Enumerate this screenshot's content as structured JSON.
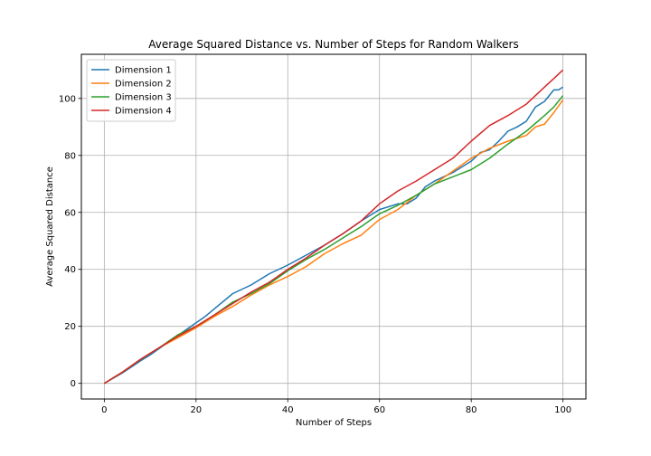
{
  "chart_data": {
    "type": "line",
    "title": "Average Squared Distance vs. Number of Steps for Random Walkers",
    "xlabel": "Number of Steps",
    "ylabel": "Average Squared Distance",
    "xlim": [
      -5,
      105
    ],
    "ylim": [
      -5.5,
      115.5
    ],
    "xticks": [
      0,
      20,
      40,
      60,
      80,
      100
    ],
    "yticks": [
      0,
      20,
      40,
      60,
      80,
      100
    ],
    "grid": true,
    "legend_position": "top-left",
    "series": [
      {
        "name": "Dimension 1",
        "color": "#1f77b4",
        "points": [
          [
            0,
            0
          ],
          [
            4,
            3.7
          ],
          [
            8,
            8
          ],
          [
            10,
            10
          ],
          [
            14,
            14.5
          ],
          [
            18,
            19
          ],
          [
            22,
            23.5
          ],
          [
            25,
            27.5
          ],
          [
            28,
            31.5
          ],
          [
            32,
            34.5
          ],
          [
            36,
            38.5
          ],
          [
            40,
            41.5
          ],
          [
            44,
            45
          ],
          [
            48,
            48.5
          ],
          [
            52,
            52.5
          ],
          [
            56,
            57
          ],
          [
            60,
            61
          ],
          [
            64,
            63
          ],
          [
            66,
            63
          ],
          [
            68,
            65
          ],
          [
            70,
            69
          ],
          [
            72,
            71
          ],
          [
            76,
            74
          ],
          [
            80,
            78
          ],
          [
            82,
            81
          ],
          [
            84,
            82
          ],
          [
            86,
            85
          ],
          [
            88,
            88.5
          ],
          [
            90,
            90
          ],
          [
            92,
            92
          ],
          [
            94,
            97
          ],
          [
            96,
            99
          ],
          [
            98,
            103
          ],
          [
            99,
            103
          ],
          [
            100,
            104
          ]
        ]
      },
      {
        "name": "Dimension 2",
        "color": "#ff7f0e",
        "points": [
          [
            0,
            0
          ],
          [
            4,
            4
          ],
          [
            8,
            8.5
          ],
          [
            12,
            12.5
          ],
          [
            16,
            16
          ],
          [
            20,
            19.5
          ],
          [
            24,
            23.5
          ],
          [
            28,
            27
          ],
          [
            32,
            31
          ],
          [
            36,
            34.5
          ],
          [
            40,
            37.5
          ],
          [
            44,
            41
          ],
          [
            48,
            45.5
          ],
          [
            52,
            49
          ],
          [
            56,
            52
          ],
          [
            60,
            57.5
          ],
          [
            64,
            61
          ],
          [
            68,
            66
          ],
          [
            72,
            70
          ],
          [
            76,
            74.5
          ],
          [
            80,
            79
          ],
          [
            84,
            82.5
          ],
          [
            88,
            85
          ],
          [
            92,
            87
          ],
          [
            94,
            90
          ],
          [
            96,
            91
          ],
          [
            98,
            95
          ],
          [
            100,
            99.5
          ]
        ]
      },
      {
        "name": "Dimension 3",
        "color": "#2ca02c",
        "points": [
          [
            0,
            0
          ],
          [
            4,
            4
          ],
          [
            8,
            8.5
          ],
          [
            12,
            12.5
          ],
          [
            16,
            17
          ],
          [
            20,
            20
          ],
          [
            24,
            24
          ],
          [
            28,
            28.5
          ],
          [
            32,
            31.5
          ],
          [
            36,
            35
          ],
          [
            40,
            39.5
          ],
          [
            44,
            43.5
          ],
          [
            48,
            47
          ],
          [
            52,
            51
          ],
          [
            56,
            55
          ],
          [
            60,
            59.5
          ],
          [
            64,
            62.5
          ],
          [
            68,
            66
          ],
          [
            72,
            70
          ],
          [
            76,
            72.5
          ],
          [
            80,
            75
          ],
          [
            84,
            79
          ],
          [
            88,
            84
          ],
          [
            92,
            88.5
          ],
          [
            96,
            94
          ],
          [
            98,
            97
          ],
          [
            100,
            101
          ]
        ]
      },
      {
        "name": "Dimension 4",
        "color": "#d62728",
        "points": [
          [
            0,
            0
          ],
          [
            4,
            4
          ],
          [
            8,
            8.5
          ],
          [
            12,
            12.5
          ],
          [
            16,
            16.5
          ],
          [
            20,
            20
          ],
          [
            24,
            24
          ],
          [
            28,
            28
          ],
          [
            32,
            32
          ],
          [
            36,
            35.5
          ],
          [
            40,
            40
          ],
          [
            44,
            44
          ],
          [
            48,
            48.5
          ],
          [
            52,
            52.5
          ],
          [
            56,
            57
          ],
          [
            60,
            63
          ],
          [
            64,
            67.5
          ],
          [
            68,
            71
          ],
          [
            72,
            75
          ],
          [
            76,
            79
          ],
          [
            80,
            85
          ],
          [
            84,
            90.5
          ],
          [
            88,
            94
          ],
          [
            92,
            98
          ],
          [
            96,
            104
          ],
          [
            98,
            107
          ],
          [
            100,
            110
          ]
        ]
      }
    ]
  }
}
